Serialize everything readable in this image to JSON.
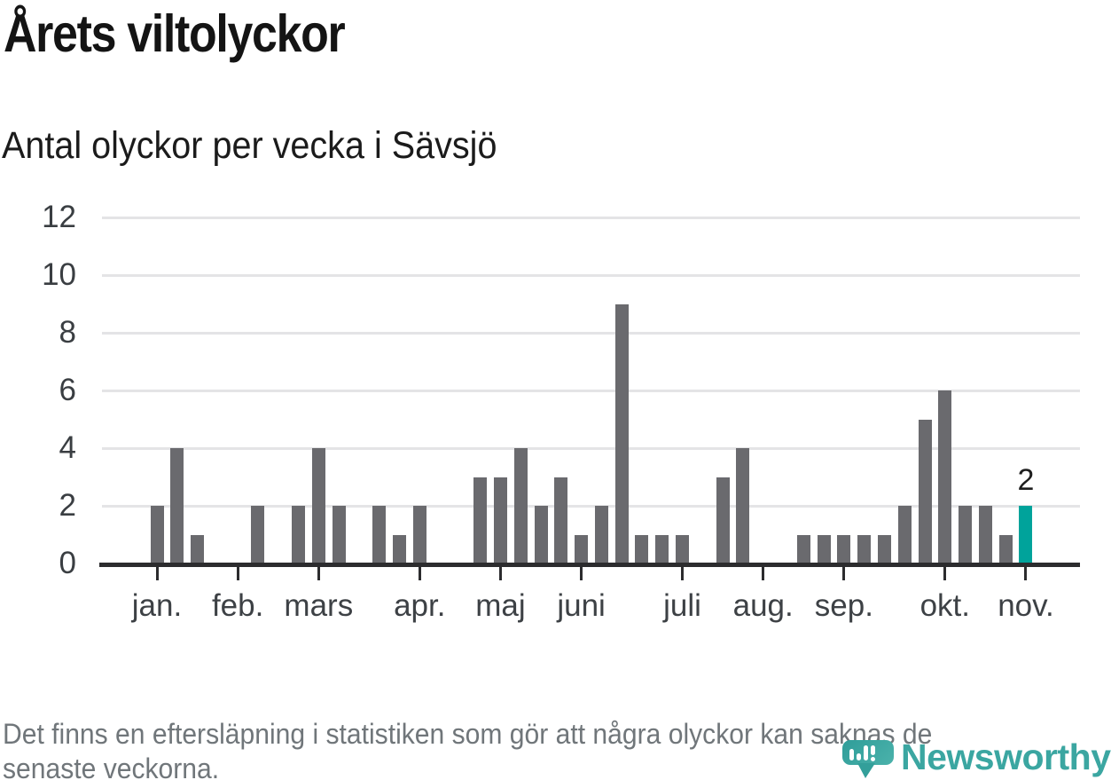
{
  "header": {
    "title": "Årets viltolyckor",
    "subtitle": "Antal olyckor per vecka i Sävsjö"
  },
  "chart_data": {
    "type": "bar",
    "title": "Årets viltolyckor",
    "subtitle": "Antal olyckor per vecka i Sävsjö",
    "x_unit": "week",
    "values": [
      2,
      4,
      1,
      0,
      0,
      2,
      0,
      2,
      4,
      2,
      0,
      2,
      1,
      2,
      0,
      0,
      3,
      3,
      4,
      2,
      3,
      1,
      2,
      9,
      1,
      1,
      1,
      0,
      3,
      4,
      0,
      0,
      1,
      1,
      1,
      1,
      1,
      2,
      5,
      6,
      2,
      2,
      1,
      2
    ],
    "highlight_index": 43,
    "highlight_value_label": "2",
    "months": [
      {
        "label": "jan.",
        "week": 1
      },
      {
        "label": "feb.",
        "week": 5
      },
      {
        "label": "mars",
        "week": 9
      },
      {
        "label": "apr.",
        "week": 14
      },
      {
        "label": "maj",
        "week": 18
      },
      {
        "label": "juni",
        "week": 22
      },
      {
        "label": "juli",
        "week": 27
      },
      {
        "label": "aug.",
        "week": 31
      },
      {
        "label": "sep.",
        "week": 35
      },
      {
        "label": "okt.",
        "week": 40
      },
      {
        "label": "nov.",
        "week": 44
      }
    ],
    "yticks": [
      0,
      2,
      4,
      6,
      8,
      10,
      12
    ],
    "ylim": [
      0,
      12
    ],
    "grid": true,
    "legend": null,
    "colors": {
      "bar": "#6a6a6e",
      "highlight": "#00a39b"
    }
  },
  "footer": {
    "lines": [
      "Det finns en eftersläpning i statistiken som gör att några olyckor kan saknas de",
      "senaste veckorna."
    ]
  },
  "logo": {
    "text": "Newsworthy",
    "color": "#3ba6a1"
  }
}
